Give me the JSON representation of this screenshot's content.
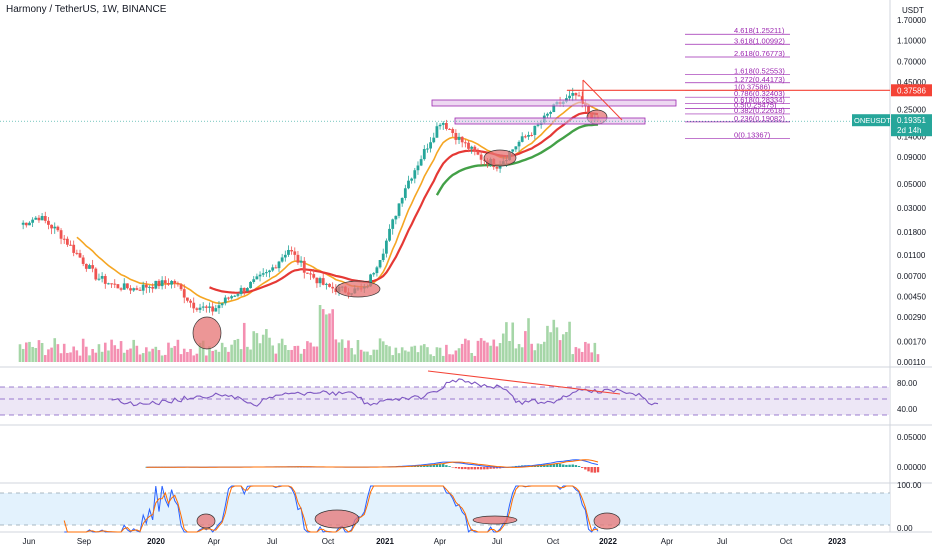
{
  "header": {
    "title": "Harmony / TetherUS, 1W, BINANCE",
    "currency": "USDT"
  },
  "colors": {
    "up": "#26a69a",
    "up_light": "#a5d6a7",
    "down": "#ef5350",
    "down_light": "#f48fb1",
    "ema_fast": "#f5a623",
    "ema_mid": "#e53935",
    "ema_slow": "#43a047",
    "fib": "#9c27b0",
    "rsi": "#7e57c2",
    "macd": "#2962ff",
    "signal": "#ff6d00",
    "ellipse_fill": "#e57373",
    "resistance": "#f44336",
    "price_tag": "#26a69a"
  },
  "price_axis": {
    "labels": [
      "1.70000",
      "1.10000",
      "0.70000",
      "0.45000",
      "0.25000",
      "0.14000",
      "0.09000",
      "0.05000",
      "0.03000",
      "0.01800",
      "0.01100",
      "0.00700",
      "0.00450",
      "0.00290",
      "0.00170",
      "0.00110"
    ]
  },
  "price_tags": {
    "resistance": "0.37586",
    "symbol": "ONEUSDT",
    "current": "0.19351",
    "countdown": "2d 14h"
  },
  "fib_levels": [
    {
      "label": "4.618(1.25211)",
      "value": 1.25211
    },
    {
      "label": "3.618(1.00992)",
      "value": 1.00992
    },
    {
      "label": "2.618(0.76773)",
      "value": 0.76773
    },
    {
      "label": "1.618(0.52553)",
      "value": 0.52553
    },
    {
      "label": "1.272(0.44173)",
      "value": 0.44173
    },
    {
      "label": "1(0.37586)",
      "value": 0.37586
    },
    {
      "label": "0.786(0.32403)",
      "value": 0.32403
    },
    {
      "label": "0.618(0.28334)",
      "value": 0.28334
    },
    {
      "label": "0.5(0.25475)",
      "value": 0.25475
    },
    {
      "label": "0.382(0.22618)",
      "value": 0.22618
    },
    {
      "label": "0.236(0.19082)",
      "value": 0.19082
    },
    {
      "label": "0(0.13367)",
      "value": 0.13367
    }
  ],
  "rsi_axis": {
    "labels": [
      "80.00",
      "40.00"
    ]
  },
  "macd_axis": {
    "labels": [
      "0.05000",
      "0.00000"
    ]
  },
  "stoch_axis": {
    "labels": [
      "100.00",
      "0.00"
    ]
  },
  "time_axis": {
    "labels": [
      "Jun",
      "Sep",
      "2020",
      "Apr",
      "Jul",
      "Oct",
      "2021",
      "Apr",
      "Jul",
      "Oct",
      "2022",
      "Apr",
      "Jul",
      "Oct",
      "2023"
    ]
  },
  "chart_data": {
    "type": "candlestick",
    "title": "Harmony / TetherUS, 1W, BINANCE",
    "y_scale": "log",
    "ylim": [
      0.0011,
      1.7
    ],
    "x_range": [
      "2019-06-01",
      "2023-03-01"
    ],
    "series": [
      {
        "name": "ONEUSDT",
        "points": [
          [
            "2019-06-01",
            0.021
          ],
          [
            "2019-07-01",
            0.025
          ],
          [
            "2019-08-01",
            0.018
          ],
          [
            "2019-09-01",
            0.011
          ],
          [
            "2019-10-01",
            0.0068
          ],
          [
            "2019-11-01",
            0.0056
          ],
          [
            "2019-12-01",
            0.0053
          ],
          [
            "2020-01-01",
            0.0058
          ],
          [
            "2020-02-01",
            0.0062
          ],
          [
            "2020-03-01",
            0.0038
          ],
          [
            "2020-04-01",
            0.0033
          ],
          [
            "2020-05-01",
            0.0045
          ],
          [
            "2020-06-01",
            0.0058
          ],
          [
            "2020-07-01",
            0.0075
          ],
          [
            "2020-08-01",
            0.0125
          ],
          [
            "2020-09-01",
            0.0075
          ],
          [
            "2020-10-01",
            0.0055
          ],
          [
            "2020-11-01",
            0.0051
          ],
          [
            "2020-12-01",
            0.0052
          ],
          [
            "2021-01-01",
            0.013
          ],
          [
            "2021-02-01",
            0.045
          ],
          [
            "2021-03-01",
            0.09
          ],
          [
            "2021-04-01",
            0.2
          ],
          [
            "2021-05-01",
            0.13
          ],
          [
            "2021-06-01",
            0.09
          ],
          [
            "2021-07-01",
            0.075
          ],
          [
            "2021-08-01",
            0.12
          ],
          [
            "2021-09-01",
            0.17
          ],
          [
            "2021-10-01",
            0.27
          ],
          [
            "2021-11-01",
            0.34
          ],
          [
            "2021-12-01",
            0.19351
          ]
        ]
      }
    ]
  }
}
